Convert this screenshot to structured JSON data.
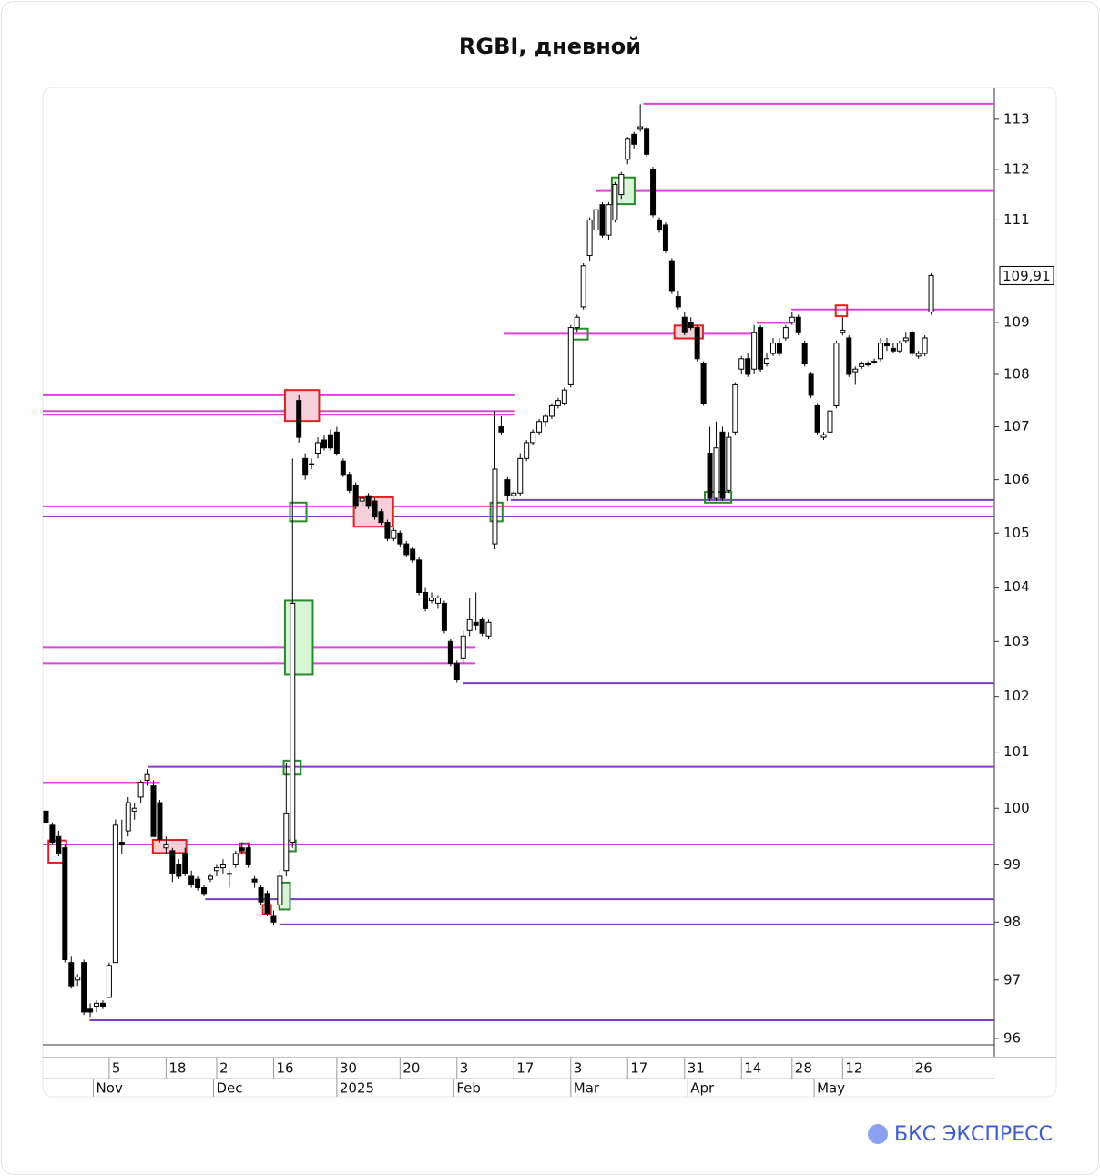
{
  "chart_data": {
    "type": "candlestick",
    "title": "RGBI, дневной",
    "brand": "БКС ЭКСПРЕСС",
    "log_scale": true,
    "ylim": [
      95.89,
      113.62
    ],
    "yticks": [
      96,
      97,
      98,
      99,
      100,
      101,
      102,
      103,
      104,
      105,
      106,
      107,
      108,
      109,
      111,
      112,
      113
    ],
    "xlim": [
      -0.5,
      150
    ],
    "xticks": [
      {
        "value": 10,
        "label": "5"
      },
      {
        "value": 19,
        "label": "18"
      },
      {
        "value": 27,
        "label": "2"
      },
      {
        "value": 36,
        "label": "16"
      },
      {
        "value": 46,
        "label": "30"
      },
      {
        "value": 56,
        "label": "20"
      },
      {
        "value": 65,
        "label": "3"
      },
      {
        "value": 74,
        "label": "17"
      },
      {
        "value": 83,
        "label": "3"
      },
      {
        "value": 92,
        "label": "17"
      },
      {
        "value": 101,
        "label": "31"
      },
      {
        "value": 110,
        "label": "14"
      },
      {
        "value": 118,
        "label": "28"
      },
      {
        "value": 126,
        "label": "12"
      },
      {
        "value": 137,
        "label": "26"
      }
    ],
    "xticks_months": [
      {
        "value": 7.5,
        "label": "Nov"
      },
      {
        "value": 26.5,
        "label": "Dec"
      },
      {
        "value": 46,
        "label": "2025"
      },
      {
        "value": 64.5,
        "label": "Feb"
      },
      {
        "value": 83,
        "label": "Mar"
      },
      {
        "value": 101.5,
        "label": "Apr"
      },
      {
        "value": 121.5,
        "label": "May"
      }
    ],
    "last_price": {
      "value": 109.91,
      "label": "109,91"
    },
    "up_color": "#ffffff",
    "down_color": "#000000",
    "candles": [
      [
        99.95,
        100.0,
        99.7,
        99.75
      ],
      [
        99.7,
        99.75,
        99.35,
        99.4
      ],
      [
        99.5,
        99.6,
        99.15,
        99.2
      ],
      [
        99.3,
        99.35,
        97.3,
        97.35
      ],
      [
        97.3,
        97.4,
        96.85,
        96.9
      ],
      [
        97.0,
        97.1,
        96.9,
        97.05
      ],
      [
        97.3,
        97.35,
        96.4,
        96.45
      ],
      [
        96.5,
        96.6,
        96.35,
        96.45
      ],
      [
        96.55,
        96.65,
        96.45,
        96.6
      ],
      [
        96.6,
        96.65,
        96.5,
        96.55
      ],
      [
        96.7,
        97.3,
        96.7,
        97.25
      ],
      [
        97.3,
        99.8,
        97.3,
        99.7
      ],
      [
        99.4,
        99.8,
        99.2,
        99.35
      ],
      [
        99.6,
        100.2,
        99.5,
        100.1
      ],
      [
        99.95,
        100.1,
        99.8,
        100.0
      ],
      [
        100.2,
        100.5,
        100.1,
        100.45
      ],
      [
        100.5,
        100.7,
        100.4,
        100.6
      ],
      [
        100.4,
        100.5,
        99.5,
        99.5
      ],
      [
        100.1,
        100.15,
        99.4,
        99.45
      ],
      [
        99.3,
        99.5,
        99.2,
        99.35
      ],
      [
        99.25,
        99.3,
        98.7,
        98.85
      ],
      [
        99.0,
        99.1,
        98.75,
        98.8
      ],
      [
        99.2,
        99.3,
        98.8,
        98.85
      ],
      [
        98.8,
        98.9,
        98.6,
        98.65
      ],
      [
        98.75,
        98.8,
        98.55,
        98.6
      ],
      [
        98.6,
        98.65,
        98.45,
        98.5
      ],
      [
        98.75,
        98.85,
        98.7,
        98.8
      ],
      [
        98.9,
        99.0,
        98.8,
        98.95
      ],
      [
        98.95,
        99.1,
        98.85,
        99.0
      ],
      [
        98.85,
        98.9,
        98.6,
        98.85
      ],
      [
        99.0,
        99.25,
        98.95,
        99.2
      ],
      [
        99.3,
        99.4,
        99.2,
        99.25
      ],
      [
        99.3,
        99.35,
        98.95,
        99.0
      ],
      [
        98.75,
        98.8,
        98.6,
        98.7
      ],
      [
        98.6,
        98.65,
        98.3,
        98.35
      ],
      [
        98.5,
        98.55,
        98.1,
        98.15
      ],
      [
        98.1,
        98.2,
        97.95,
        98.0
      ],
      [
        98.3,
        98.9,
        98.2,
        98.8
      ],
      [
        98.9,
        100.8,
        98.8,
        99.9
      ],
      [
        99.4,
        106.4,
        99.3,
        103.7
      ],
      [
        107.5,
        107.6,
        106.7,
        106.8
      ],
      [
        106.4,
        106.5,
        106.0,
        106.1
      ],
      [
        106.3,
        106.4,
        106.2,
        106.3
      ],
      [
        106.5,
        106.8,
        106.4,
        106.7
      ],
      [
        106.75,
        106.85,
        106.55,
        106.6
      ],
      [
        106.85,
        106.95,
        106.55,
        106.6
      ],
      [
        106.9,
        107.0,
        106.45,
        106.5
      ],
      [
        106.35,
        106.4,
        106.05,
        106.1
      ],
      [
        106.1,
        106.15,
        105.75,
        105.8
      ],
      [
        105.9,
        105.95,
        105.45,
        105.5
      ],
      [
        105.6,
        105.7,
        105.5,
        105.65
      ],
      [
        105.7,
        105.75,
        105.45,
        105.5
      ],
      [
        105.6,
        105.65,
        105.25,
        105.3
      ],
      [
        105.4,
        105.45,
        105.15,
        105.2
      ],
      [
        105.2,
        105.25,
        104.85,
        104.9
      ],
      [
        104.9,
        105.1,
        104.85,
        105.05
      ],
      [
        105.0,
        105.05,
        104.75,
        104.8
      ],
      [
        104.8,
        104.85,
        104.55,
        104.6
      ],
      [
        104.7,
        104.75,
        104.45,
        104.5
      ],
      [
        104.5,
        104.55,
        103.85,
        103.9
      ],
      [
        103.9,
        104.0,
        103.55,
        103.6
      ],
      [
        103.75,
        103.9,
        103.7,
        103.8
      ],
      [
        103.7,
        103.85,
        103.6,
        103.8
      ],
      [
        103.7,
        103.75,
        103.15,
        103.2
      ],
      [
        103.0,
        103.05,
        102.55,
        102.6
      ],
      [
        102.6,
        102.65,
        102.25,
        102.3
      ],
      [
        102.7,
        103.2,
        102.6,
        103.1
      ],
      [
        103.2,
        103.8,
        103.1,
        103.4
      ],
      [
        103.35,
        103.9,
        103.2,
        103.3
      ],
      [
        103.4,
        103.45,
        103.1,
        103.15
      ],
      [
        103.1,
        103.4,
        103.05,
        103.35
      ],
      [
        104.8,
        107.3,
        104.7,
        106.2
      ],
      [
        107.0,
        107.2,
        106.85,
        106.9
      ],
      [
        106.0,
        106.05,
        105.6,
        105.7
      ],
      [
        105.7,
        105.8,
        105.65,
        105.75
      ],
      [
        105.75,
        106.5,
        105.7,
        106.4
      ],
      [
        106.4,
        106.75,
        106.35,
        106.7
      ],
      [
        106.7,
        106.95,
        106.65,
        106.9
      ],
      [
        106.9,
        107.15,
        106.85,
        107.1
      ],
      [
        107.1,
        107.25,
        107.0,
        107.2
      ],
      [
        107.2,
        107.45,
        107.15,
        107.4
      ],
      [
        107.4,
        107.55,
        107.35,
        107.5
      ],
      [
        107.45,
        107.75,
        107.4,
        107.7
      ],
      [
        107.8,
        108.95,
        107.75,
        108.9
      ],
      [
        108.9,
        109.15,
        108.8,
        109.1
      ],
      [
        109.3,
        110.15,
        109.25,
        110.1
      ],
      [
        110.3,
        111.05,
        110.2,
        111.0
      ],
      [
        110.8,
        111.25,
        110.7,
        111.2
      ],
      [
        111.3,
        111.35,
        110.65,
        110.7
      ],
      [
        110.7,
        111.35,
        110.6,
        111.3
      ],
      [
        111.0,
        111.75,
        110.95,
        111.7
      ],
      [
        111.5,
        111.95,
        111.4,
        111.9
      ],
      [
        112.2,
        112.65,
        112.1,
        112.6
      ],
      [
        112.7,
        112.75,
        112.4,
        112.5
      ],
      [
        112.8,
        113.3,
        112.75,
        112.85
      ],
      [
        112.8,
        112.85,
        112.25,
        112.3
      ],
      [
        112.0,
        112.05,
        111.05,
        111.1
      ],
      [
        111.0,
        111.05,
        110.75,
        110.8
      ],
      [
        110.9,
        110.95,
        110.35,
        110.4
      ],
      [
        110.2,
        110.25,
        109.55,
        109.6
      ],
      [
        109.5,
        109.6,
        109.25,
        109.3
      ],
      [
        109.1,
        109.2,
        108.75,
        108.8
      ],
      [
        109.0,
        109.1,
        108.85,
        108.9
      ],
      [
        108.9,
        108.95,
        108.25,
        108.3
      ],
      [
        108.2,
        108.25,
        107.4,
        107.45
      ],
      [
        106.5,
        107.0,
        105.6,
        105.65
      ],
      [
        105.65,
        107.1,
        105.6,
        106.6
      ],
      [
        106.9,
        107.0,
        105.6,
        105.65
      ],
      [
        105.8,
        106.9,
        105.75,
        106.8
      ],
      [
        106.9,
        107.85,
        106.85,
        107.8
      ],
      [
        108.1,
        108.35,
        108.0,
        108.3
      ],
      [
        108.3,
        108.4,
        107.95,
        108.0
      ],
      [
        108.1,
        108.95,
        108.0,
        108.8
      ],
      [
        108.9,
        108.95,
        108.05,
        108.1
      ],
      [
        108.2,
        108.4,
        108.15,
        108.3
      ],
      [
        108.4,
        108.7,
        108.35,
        108.6
      ],
      [
        108.6,
        108.7,
        108.35,
        108.4
      ],
      [
        108.7,
        108.95,
        108.65,
        108.9
      ],
      [
        109.0,
        109.2,
        108.95,
        109.1
      ],
      [
        109.1,
        109.15,
        108.75,
        108.8
      ],
      [
        108.6,
        108.65,
        108.15,
        108.2
      ],
      [
        108.0,
        108.05,
        107.55,
        107.6
      ],
      [
        107.4,
        107.45,
        106.85,
        106.9
      ],
      [
        106.8,
        106.9,
        106.75,
        106.85
      ],
      [
        106.9,
        107.35,
        106.85,
        107.3
      ],
      [
        107.4,
        108.65,
        107.35,
        108.6
      ],
      [
        108.8,
        109.1,
        108.75,
        108.85
      ],
      [
        108.7,
        108.75,
        107.95,
        108.0
      ],
      [
        108.05,
        108.15,
        107.8,
        108.1
      ],
      [
        108.15,
        108.25,
        108.1,
        108.2
      ],
      [
        108.2,
        108.25,
        108.15,
        108.2
      ],
      [
        108.25,
        108.3,
        108.2,
        108.25
      ],
      [
        108.3,
        108.7,
        108.25,
        108.6
      ],
      [
        108.6,
        108.7,
        108.45,
        108.55
      ],
      [
        108.5,
        108.6,
        108.4,
        108.45
      ],
      [
        108.45,
        108.65,
        108.4,
        108.6
      ],
      [
        108.65,
        108.8,
        108.6,
        108.7
      ],
      [
        108.8,
        108.85,
        108.35,
        108.4
      ],
      [
        108.35,
        108.45,
        108.3,
        108.4
      ],
      [
        108.4,
        108.75,
        108.35,
        108.7
      ],
      [
        109.2,
        109.95,
        109.15,
        109.91
      ]
    ],
    "levels": [
      {
        "value": 113.31,
        "from": 94.5,
        "to": 150,
        "color": "#e040e0"
      },
      {
        "value": 111.57,
        "from": 87,
        "to": 150,
        "color": "#e040e0"
      },
      {
        "value": 109.25,
        "from": 117.9,
        "to": 150,
        "color": "#e040e0"
      },
      {
        "value": 108.99,
        "from": 112.4,
        "to": 117.9,
        "color": "#e040e0"
      },
      {
        "value": 108.78,
        "from": 72.5,
        "to": 112.4,
        "color": "#e040e0"
      },
      {
        "value": 107.6,
        "from": -0.5,
        "to": 74.2,
        "color": "#e040e0"
      },
      {
        "value": 107.3,
        "from": -0.5,
        "to": 74.2,
        "color": "#e040e0"
      },
      {
        "value": 107.23,
        "from": -0.5,
        "to": 74.2,
        "color": "#e040e0"
      },
      {
        "value": 105.62,
        "from": 73.5,
        "to": 150,
        "color": "#7a3cc8"
      },
      {
        "value": 105.5,
        "from": -0.5,
        "to": 150,
        "color": "#e040e0"
      },
      {
        "value": 105.31,
        "from": -0.5,
        "to": 150,
        "color": "#8a38d0"
      },
      {
        "value": 102.9,
        "from": -0.5,
        "to": 67.9,
        "color": "#e040e0"
      },
      {
        "value": 102.6,
        "from": -0.5,
        "to": 67.9,
        "color": "#e040e0"
      },
      {
        "value": 102.24,
        "from": 66,
        "to": 150,
        "color": "#7a3cc8"
      },
      {
        "value": 100.74,
        "from": 16.1,
        "to": 150,
        "color": "#8a38d0"
      },
      {
        "value": 100.45,
        "from": -0.5,
        "to": 18,
        "color": "#e040e0"
      },
      {
        "value": 99.36,
        "from": -0.5,
        "to": 150,
        "color": "#c040e0"
      },
      {
        "value": 98.4,
        "from": 25.2,
        "to": 150,
        "color": "#7a3cc8"
      },
      {
        "value": 97.96,
        "from": 36.9,
        "to": 150,
        "color": "#7a3cc8"
      },
      {
        "value": 96.31,
        "from": 6.9,
        "to": 150,
        "color": "#7a3cc8"
      }
    ],
    "zones": [
      {
        "x0": 37.8,
        "x1": 43.2,
        "y0": 107.7,
        "y1": 107.11,
        "color": "#e02020",
        "fill": "#f5d0da"
      },
      {
        "x0": 37.8,
        "x1": 42.2,
        "y0": 103.75,
        "y1": 102.4,
        "color": "#2a8a2a",
        "fill": "#d8f5d8"
      },
      {
        "x0": 48.7,
        "x1": 54.9,
        "y0": 105.67,
        "y1": 105.12,
        "color": "#e02020",
        "fill": "#f5d0da"
      },
      {
        "x0": 38.6,
        "x1": 41.2,
        "y0": 105.57,
        "y1": 105.22,
        "color": "#2a8a2a"
      },
      {
        "x0": 70.3,
        "x1": 72.2,
        "y0": 105.57,
        "y1": 105.22,
        "color": "#2a8a2a"
      },
      {
        "x0": 37.6,
        "x1": 40.3,
        "y0": 100.85,
        "y1": 100.6,
        "color": "#2a8a2a"
      },
      {
        "x0": 37.8,
        "x1": 39.5,
        "y0": 99.43,
        "y1": 99.24,
        "color": "#2a8a2a"
      },
      {
        "x0": 36.9,
        "x1": 38.6,
        "y0": 98.69,
        "y1": 98.22,
        "color": "#2a8a2a",
        "fill": "#d8f5d8"
      },
      {
        "x0": 0.4,
        "x1": 3.2,
        "y0": 99.43,
        "y1": 99.04,
        "color": "#e02020"
      },
      {
        "x0": 16.9,
        "x1": 22.2,
        "y0": 99.44,
        "y1": 99.21,
        "color": "#e02020",
        "fill": "#f5d0da"
      },
      {
        "x0": 30.7,
        "x1": 32.1,
        "y0": 99.38,
        "y1": 99.22,
        "color": "#e02020"
      },
      {
        "x0": 34.3,
        "x1": 35.6,
        "y0": 98.3,
        "y1": 98.14,
        "color": "#e02020"
      },
      {
        "x0": 83.1,
        "x1": 85.7,
        "y0": 108.88,
        "y1": 108.67,
        "color": "#2a8a2a"
      },
      {
        "x0": 89.5,
        "x1": 93.1,
        "y0": 111.84,
        "y1": 111.31,
        "color": "#2a8a2a",
        "fill": "#d8f5d8"
      },
      {
        "x0": 99.4,
        "x1": 103.9,
        "y0": 108.94,
        "y1": 108.69,
        "color": "#e02020",
        "fill": "#f5d0da"
      },
      {
        "x0": 104.2,
        "x1": 108.4,
        "y0": 105.77,
        "y1": 105.57,
        "color": "#2a8a2a"
      },
      {
        "x0": 124.9,
        "x1": 126.7,
        "y0": 109.33,
        "y1": 109.12,
        "color": "#e02020"
      }
    ]
  }
}
